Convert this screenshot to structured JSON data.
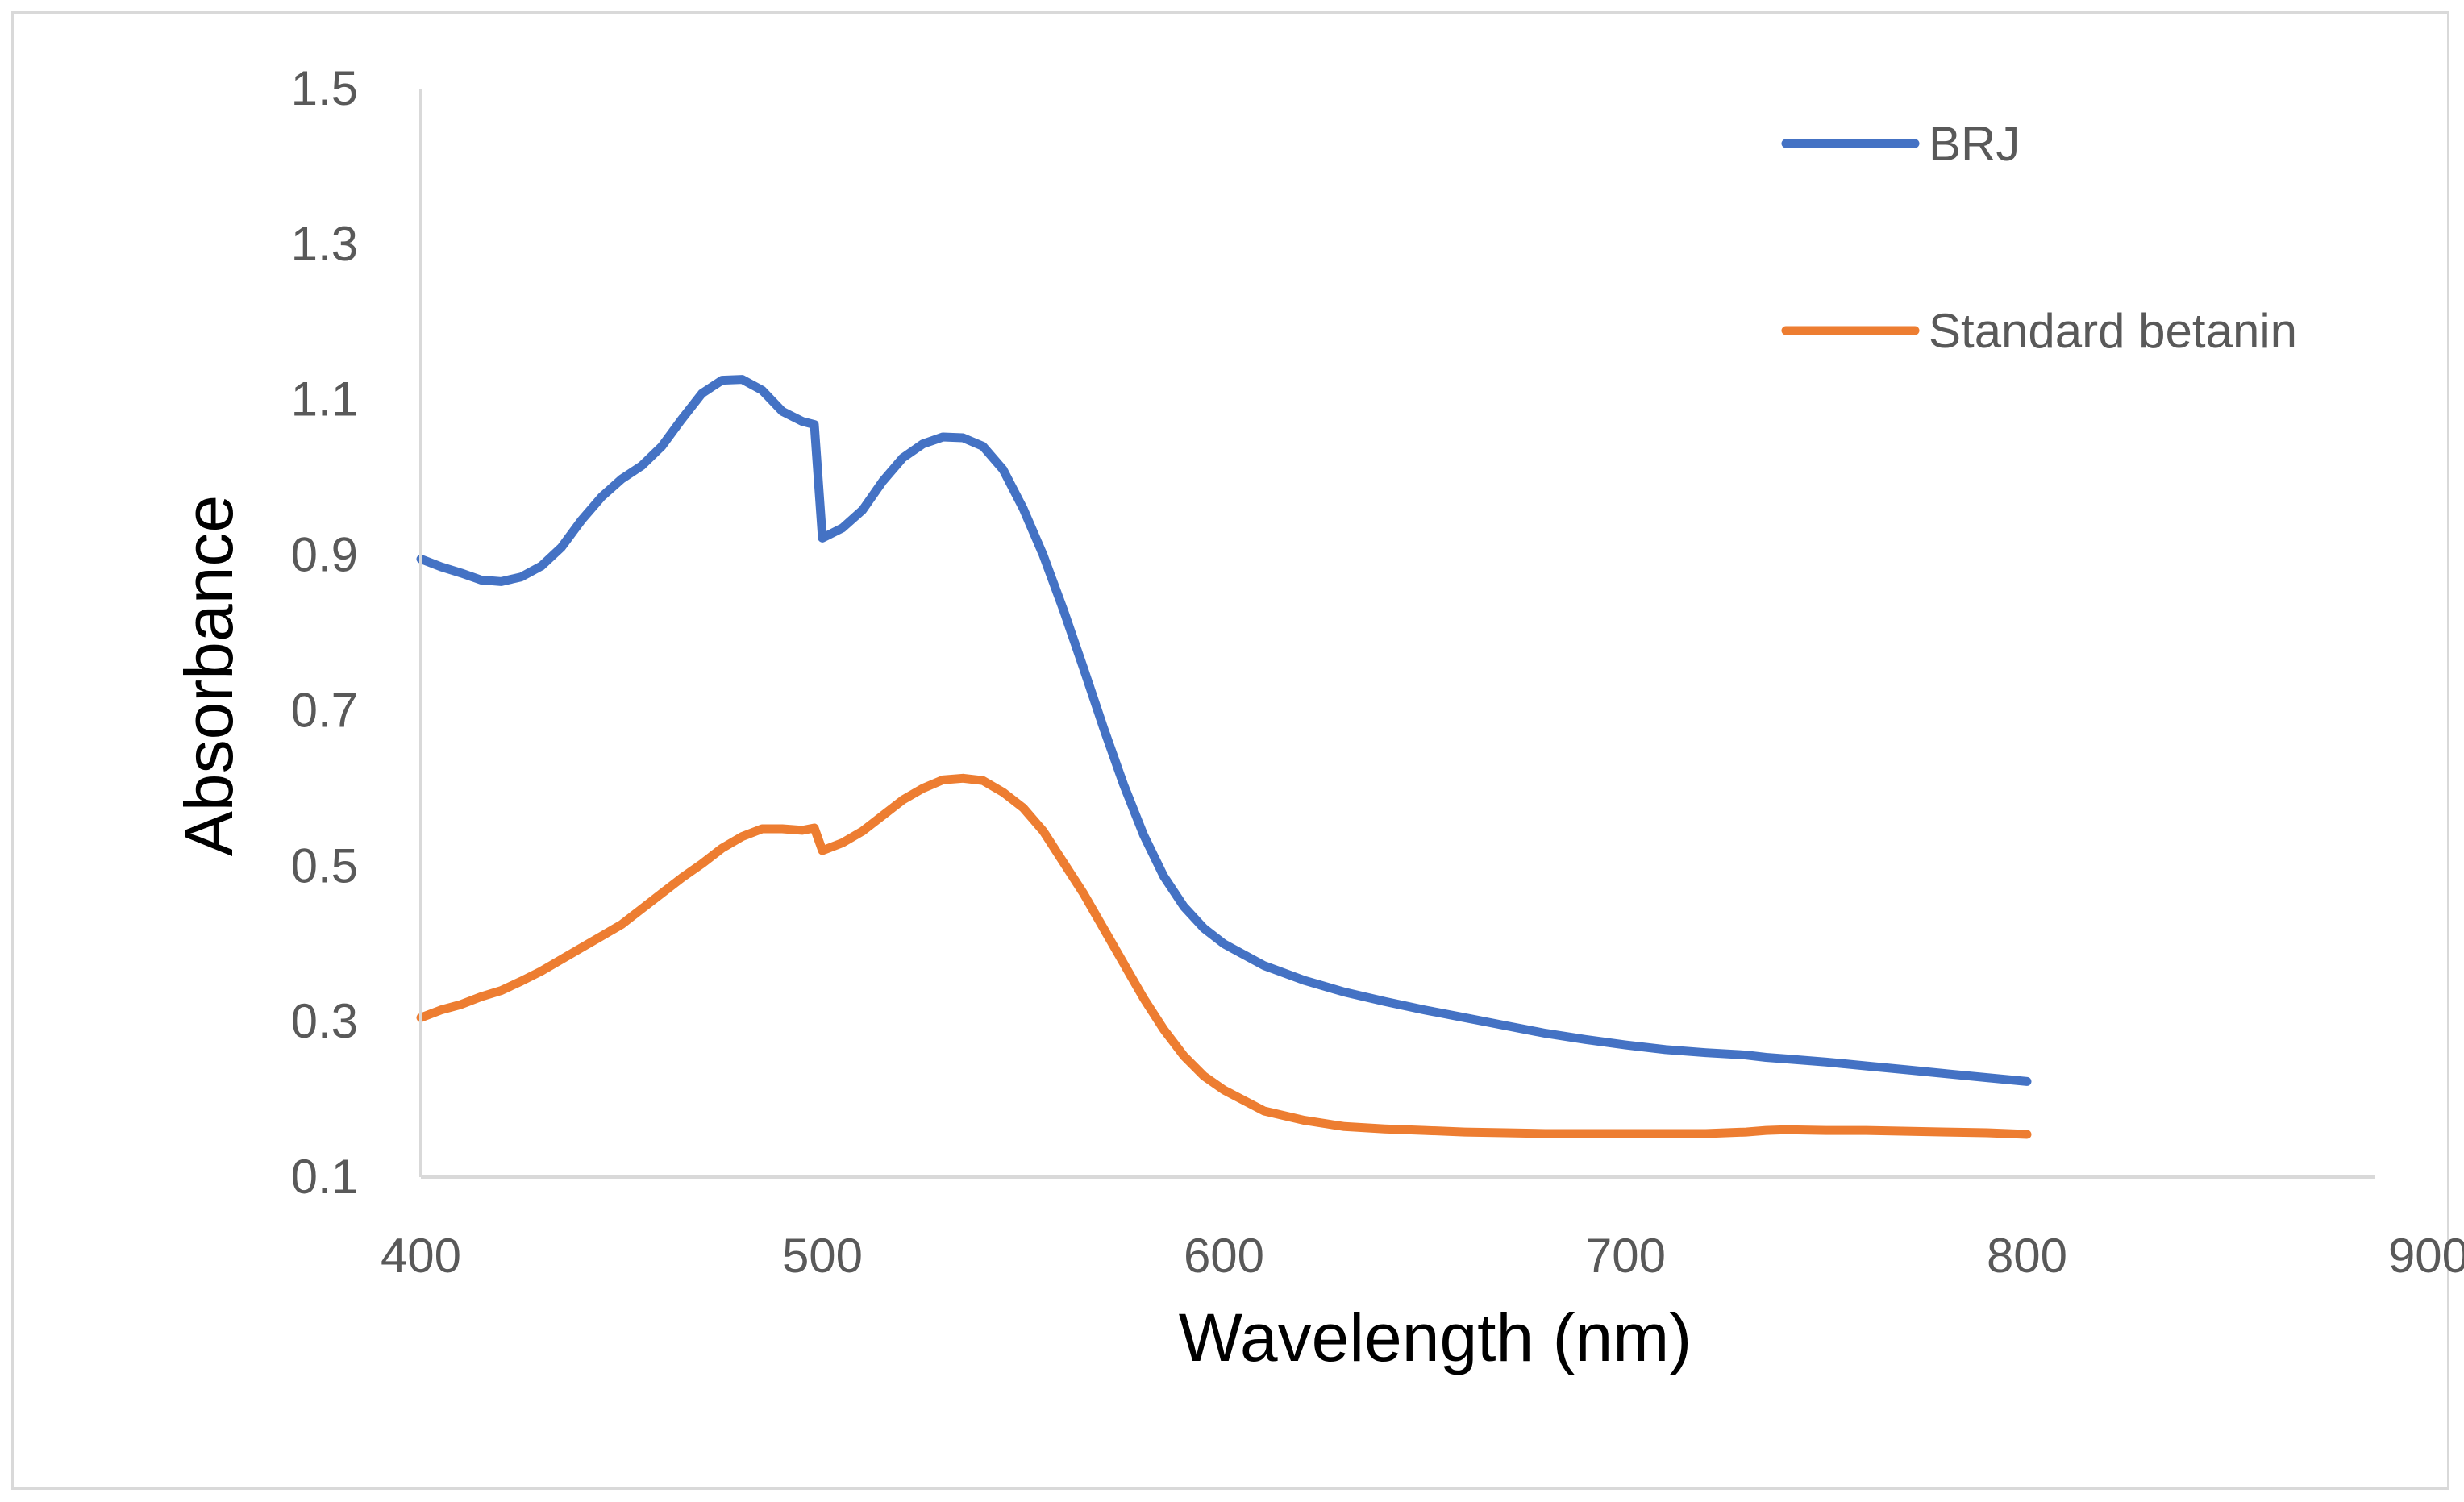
{
  "chart_data": {
    "type": "line",
    "title": "",
    "xlabel": "Wavelength (nm)",
    "ylabel": "Absorbance",
    "xlim": [
      400,
      900
    ],
    "ylim": [
      0.1,
      1.5
    ],
    "xticks": [
      400,
      500,
      600,
      700,
      800,
      900
    ],
    "yticks": [
      0.1,
      0.3,
      0.5,
      0.7,
      0.9,
      1.1,
      1.3,
      1.5
    ],
    "ytick_labels": [
      "0.1",
      "0.3",
      "0.5",
      "0.7",
      "0.9",
      "1.1",
      "1.3",
      "1.5"
    ],
    "xtick_labels": [
      "400",
      "500",
      "600",
      "700",
      "800",
      "900"
    ],
    "grid": false,
    "legend_position": "top-right",
    "series": [
      {
        "name": "BRJ",
        "color": "#4472c4",
        "x": [
          400,
          405,
          410,
          415,
          420,
          425,
          430,
          435,
          440,
          445,
          450,
          455,
          460,
          465,
          470,
          475,
          480,
          485,
          490,
          495,
          498,
          500,
          505,
          510,
          515,
          520,
          525,
          530,
          535,
          540,
          545,
          550,
          555,
          560,
          565,
          570,
          575,
          580,
          585,
          590,
          595,
          600,
          610,
          620,
          630,
          640,
          650,
          660,
          670,
          680,
          690,
          700,
          710,
          720,
          730,
          735,
          740,
          750,
          760,
          770,
          780,
          790,
          800
        ],
        "y": [
          0.895,
          0.885,
          0.877,
          0.868,
          0.866,
          0.872,
          0.886,
          0.91,
          0.945,
          0.975,
          0.998,
          1.015,
          1.04,
          1.075,
          1.108,
          1.125,
          1.126,
          1.112,
          1.085,
          1.072,
          1.068,
          0.922,
          0.935,
          0.958,
          0.995,
          1.025,
          1.043,
          1.052,
          1.051,
          1.04,
          1.01,
          0.96,
          0.9,
          0.83,
          0.755,
          0.678,
          0.605,
          0.54,
          0.487,
          0.448,
          0.42,
          0.4,
          0.372,
          0.353,
          0.338,
          0.326,
          0.315,
          0.305,
          0.295,
          0.285,
          0.277,
          0.27,
          0.264,
          0.26,
          0.257,
          0.254,
          0.252,
          0.248,
          0.243,
          0.238,
          0.233,
          0.228,
          0.223
        ]
      },
      {
        "name": "Standard betanin",
        "color": "#ed7d31",
        "x": [
          400,
          405,
          410,
          415,
          420,
          425,
          430,
          435,
          440,
          445,
          450,
          455,
          460,
          465,
          470,
          475,
          480,
          485,
          490,
          495,
          498,
          500,
          505,
          510,
          515,
          520,
          525,
          530,
          535,
          540,
          545,
          550,
          555,
          560,
          565,
          570,
          575,
          580,
          585,
          590,
          595,
          600,
          610,
          620,
          630,
          640,
          650,
          660,
          670,
          680,
          690,
          700,
          710,
          720,
          730,
          735,
          740,
          750,
          760,
          770,
          780,
          790,
          800
        ],
        "y": [
          0.305,
          0.315,
          0.322,
          0.332,
          0.34,
          0.352,
          0.365,
          0.38,
          0.395,
          0.41,
          0.425,
          0.445,
          0.465,
          0.485,
          0.503,
          0.523,
          0.538,
          0.548,
          0.548,
          0.546,
          0.549,
          0.52,
          0.53,
          0.545,
          0.565,
          0.585,
          0.6,
          0.611,
          0.613,
          0.61,
          0.595,
          0.575,
          0.545,
          0.505,
          0.465,
          0.42,
          0.375,
          0.33,
          0.29,
          0.256,
          0.23,
          0.212,
          0.185,
          0.173,
          0.165,
          0.162,
          0.16,
          0.158,
          0.157,
          0.156,
          0.156,
          0.156,
          0.156,
          0.156,
          0.158,
          0.16,
          0.161,
          0.16,
          0.16,
          0.159,
          0.158,
          0.157,
          0.155
        ]
      }
    ]
  }
}
